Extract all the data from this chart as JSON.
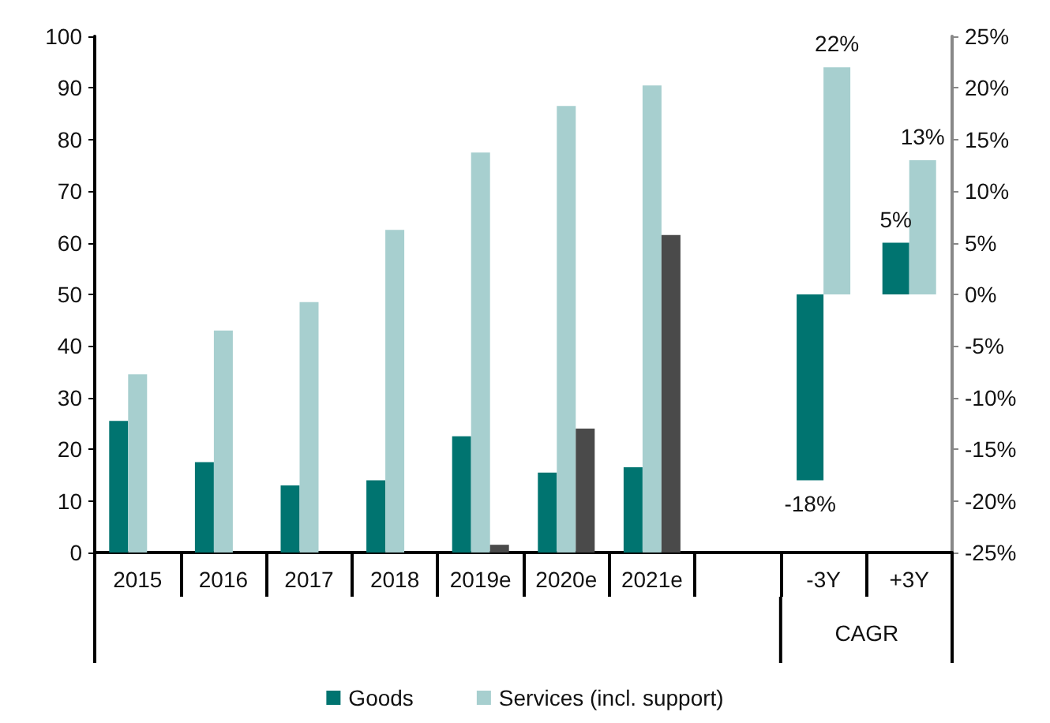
{
  "chart_data": {
    "type": "bar",
    "categories": [
      "2015",
      "2016",
      "2017",
      "2018",
      "2019e",
      "2020e",
      "2021e",
      null,
      "-3Y",
      "+3Y"
    ],
    "series": [
      {
        "name": "Goods",
        "color": "#007470",
        "values": [
          25.5,
          17.5,
          13,
          14,
          22.5,
          15.5,
          16.5,
          null,
          null,
          null
        ]
      },
      {
        "name": "Services (incl. support)",
        "color": "#a7cfcf",
        "values": [
          34.5,
          43,
          48.5,
          62.5,
          77.5,
          86.5,
          90.5,
          null,
          null,
          null
        ]
      },
      {
        "color": "#4a4a4a",
        "values": [
          null,
          null,
          null,
          null,
          1.5,
          24,
          61.5,
          null,
          null,
          null
        ]
      },
      {
        "color": "#007470",
        "axis": "y2",
        "values": [
          null,
          null,
          null,
          null,
          null,
          null,
          null,
          null,
          -18,
          5
        ],
        "value_labels": [
          null,
          null,
          null,
          null,
          null,
          null,
          null,
          null,
          "-18%",
          "5%"
        ]
      },
      {
        "color": "#a7cfcf",
        "axis": "y2",
        "values": [
          null,
          null,
          null,
          null,
          null,
          null,
          null,
          null,
          22,
          13
        ],
        "value_labels": [
          null,
          null,
          null,
          null,
          null,
          null,
          null,
          null,
          "22%",
          "13%"
        ]
      }
    ],
    "ylim": [
      0,
      100
    ],
    "yticks": [
      0,
      10,
      20,
      30,
      40,
      50,
      60,
      70,
      80,
      90,
      100
    ],
    "y2lim": [
      -25,
      25
    ],
    "y2ticks": [
      {
        "value": -25,
        "label": "-25%"
      },
      {
        "value": -20,
        "label": "-20%"
      },
      {
        "value": -15,
        "label": "-15%"
      },
      {
        "value": -10,
        "label": "-10%"
      },
      {
        "value": -5,
        "label": "-5%"
      },
      {
        "value": 0,
        "label": "0%"
      },
      {
        "value": 5,
        "label": "5%"
      },
      {
        "value": 10,
        "label": "10%"
      },
      {
        "value": 15,
        "label": "15%"
      },
      {
        "value": 20,
        "label": "20%"
      },
      {
        "value": 25,
        "label": "25%"
      }
    ],
    "annotations": [
      "CAGR"
    ],
    "grid": false,
    "legend": "bottom"
  }
}
